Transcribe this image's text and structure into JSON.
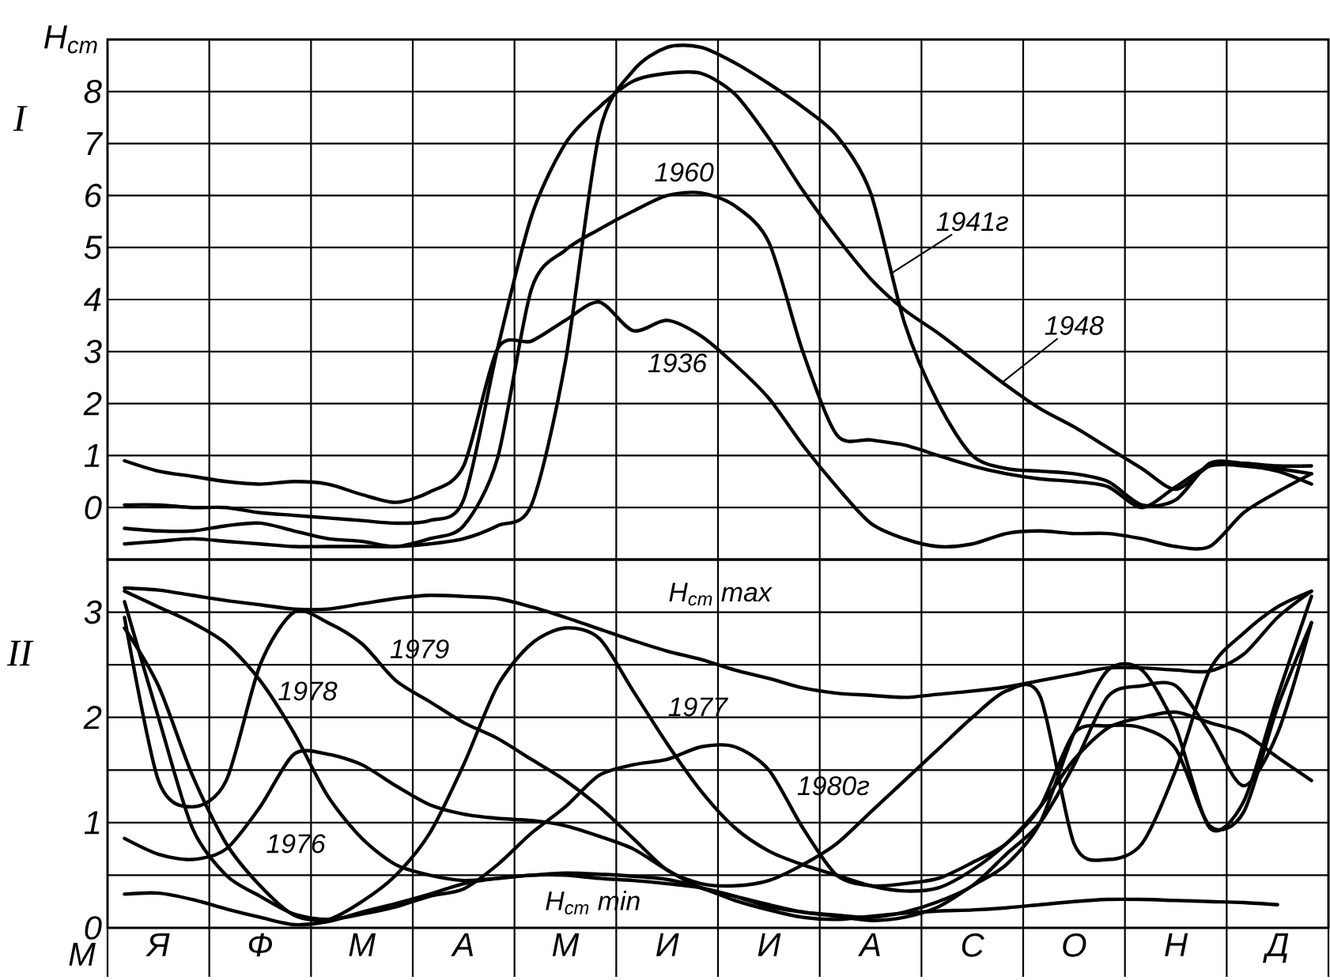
{
  "chart_data": [
    {
      "type": "line",
      "title": "I",
      "ylabel": "H$_{cm}$",
      "ylim": [
        -1,
        9
      ],
      "grid": true,
      "tick_labels": "y",
      "categories": [
        null,
        null,
        null,
        null,
        null,
        null,
        null,
        null,
        null,
        null,
        null,
        null,
        null,
        null,
        null,
        null,
        null,
        null,
        null,
        null,
        null,
        null,
        null,
        null,
        null,
        null,
        null,
        null,
        null,
        null,
        null,
        null,
        null,
        null,
        null,
        null
      ],
      "yticks": [
        0,
        1,
        2,
        3,
        4,
        5,
        6,
        7,
        8
      ],
      "series": [
        {
          "name": "1936",
          "color": "#000000",
          "values": [
            0.9,
            0.7,
            0.6,
            0.5,
            0.45,
            0.5,
            0.45,
            0.25,
            0.1,
            0.3,
            0.8,
            3.05,
            3.2,
            3.6,
            3.95,
            3.4,
            3.6,
            3.3,
            2.75,
            2.1,
            1.2,
            0.4,
            -0.3,
            -0.6,
            -0.75,
            -0.7,
            -0.5,
            -0.45,
            -0.5,
            -0.5,
            -0.6,
            -0.75,
            -0.75,
            -0.1,
            0.3,
            0.65
          ]
        },
        {
          "name": "1960",
          "color": "#000000",
          "values": [
            -0.4,
            -0.45,
            -0.45,
            -0.35,
            -0.3,
            -0.45,
            -0.6,
            -0.65,
            -0.75,
            -0.6,
            -0.35,
            0.95,
            4.2,
            4.95,
            5.35,
            5.7,
            6.0,
            6.05,
            5.8,
            5.1,
            3.0,
            1.4,
            1.3,
            1.2,
            1.0,
            0.8,
            0.65,
            0.55,
            0.5,
            0.4,
            0.0,
            0.4,
            0.8,
            0.8,
            0.7,
            0.45
          ]
        },
        {
          "name": "1948",
          "color": "#000000",
          "values": [
            0.05,
            0.05,
            0.0,
            0.0,
            -0.1,
            -0.15,
            -0.2,
            -0.25,
            -0.3,
            -0.25,
            0.15,
            3.05,
            5.6,
            7.0,
            7.7,
            8.2,
            8.35,
            8.35,
            7.95,
            7.1,
            6.1,
            5.2,
            4.4,
            3.8,
            3.35,
            2.85,
            2.35,
            1.9,
            1.55,
            1.15,
            0.75,
            0.35,
            0.8,
            0.85,
            0.75,
            0.65
          ]
        },
        {
          "name": "1941г",
          "color": "#000000",
          "values": [
            -0.7,
            -0.65,
            -0.6,
            -0.65,
            -0.7,
            -0.75,
            -0.75,
            -0.75,
            -0.75,
            -0.7,
            -0.6,
            -0.35,
            0.05,
            2.8,
            7.2,
            8.4,
            8.85,
            8.85,
            8.55,
            8.15,
            7.7,
            7.15,
            6.05,
            3.55,
            2.0,
            1.0,
            0.75,
            0.7,
            0.65,
            0.5,
            0.05,
            0.15,
            0.85,
            0.85,
            0.8,
            0.8
          ]
        }
      ]
    },
    {
      "type": "line",
      "title": "II",
      "xlabel": "М",
      "ylim": [
        0,
        3.5
      ],
      "grid": true,
      "categories": [
        null,
        "Я",
        null,
        null,
        "Ф",
        null,
        null,
        "М",
        null,
        null,
        "А",
        null,
        null,
        "М",
        null,
        null,
        "И",
        null,
        null,
        "И",
        null,
        null,
        "А",
        null,
        null,
        "С",
        null,
        null,
        "О",
        null,
        null,
        "Н",
        null,
        null,
        "Д",
        null
      ],
      "yticks": [
        0,
        {
          "value": 0.5,
          "label": null
        },
        1,
        {
          "value": 1.5,
          "label": null
        },
        2,
        {
          "value": 2.5,
          "label": null
        },
        3
      ],
      "series": [
        {
          "name": "H$_{cm}$ max",
          "color": "#000000",
          "values": [
            3.23,
            3.21,
            3.16,
            3.11,
            3.07,
            3.03,
            3.03,
            3.08,
            3.13,
            3.16,
            3.15,
            3.13,
            3.05,
            2.95,
            2.84,
            2.73,
            2.63,
            2.55,
            2.45,
            2.37,
            2.28,
            2.23,
            2.21,
            2.19,
            2.22,
            2.25,
            2.29,
            2.35,
            2.41,
            2.47,
            2.47,
            2.45,
            2.44,
            2.6,
            2.95,
            3.2
          ]
        },
        {
          "name": "1979",
          "color": "#000000",
          "values": [
            2.95,
            1.4,
            1.15,
            1.4,
            2.5,
            3.0,
            2.9,
            2.7,
            2.35,
            2.15,
            1.95,
            1.8,
            1.6,
            1.4,
            1.15,
            0.85,
            0.55,
            0.42,
            0.4,
            0.45,
            0.6,
            0.8,
            1.1,
            1.4,
            1.7,
            2.0,
            2.25,
            2.2,
            0.8,
            0.65,
            0.8,
            1.5,
            2.45,
            2.8,
            3.05,
            3.2
          ]
        },
        {
          "name": "1978",
          "color": "#000000",
          "values": [
            3.2,
            3.05,
            2.9,
            2.7,
            2.35,
            1.85,
            1.25,
            0.85,
            0.6,
            0.5,
            0.45,
            0.47,
            0.5,
            0.5,
            0.47,
            0.45,
            0.42,
            0.38,
            0.3,
            0.2,
            0.15,
            0.12,
            0.1,
            0.15,
            0.25,
            0.4,
            0.7,
            1.0,
            1.55,
            2.2,
            2.3,
            2.3,
            1.85,
            1.35,
            1.85,
            2.9
          ]
        },
        {
          "name": "1977",
          "color": "#000000",
          "values": [
            2.85,
            2.3,
            1.45,
            0.8,
            0.4,
            0.12,
            0.08,
            0.25,
            0.5,
            0.9,
            1.55,
            2.3,
            2.7,
            2.85,
            2.75,
            2.25,
            1.75,
            1.3,
            0.95,
            0.73,
            0.6,
            0.5,
            0.4,
            0.35,
            0.38,
            0.55,
            0.8,
            1.15,
            1.6,
            1.9,
            2.0,
            2.05,
            1.95,
            1.85,
            1.62,
            1.4
          ]
        },
        {
          "name": "1980г",
          "color": "#000000",
          "values": [
            3.1,
            2.0,
            0.95,
            0.5,
            0.3,
            0.13,
            0.08,
            0.13,
            0.2,
            0.3,
            0.37,
            0.6,
            0.9,
            1.15,
            1.45,
            1.55,
            1.6,
            1.72,
            1.72,
            1.5,
            0.95,
            0.5,
            0.4,
            0.42,
            0.47,
            0.62,
            0.8,
            1.15,
            1.85,
            1.92,
            1.9,
            1.7,
            0.97,
            1.1,
            2.1,
            2.9
          ]
        },
        {
          "name": "1976",
          "color": "#000000",
          "values": [
            0.85,
            0.7,
            0.65,
            0.75,
            1.15,
            1.65,
            1.65,
            1.55,
            1.35,
            1.17,
            1.08,
            1.04,
            1.02,
            0.97,
            0.87,
            0.75,
            0.55,
            0.38,
            0.3,
            0.22,
            0.15,
            0.11,
            0.07,
            0.1,
            0.2,
            0.4,
            0.6,
            1.0,
            1.85,
            2.45,
            2.45,
            1.9,
            0.95,
            1.2,
            2.2,
            3.15
          ]
        },
        {
          "name": "H$_{cm}$ min",
          "color": "#000000",
          "values": [
            0.32,
            0.33,
            0.27,
            0.18,
            0.1,
            0.03,
            0.06,
            0.15,
            0.23,
            0.32,
            0.42,
            0.47,
            0.5,
            0.52,
            0.51,
            0.49,
            0.46,
            0.38,
            0.26,
            0.17,
            0.1,
            0.08,
            0.11,
            0.14,
            0.16,
            0.17,
            0.19,
            0.22,
            0.25,
            0.27,
            0.27,
            0.26,
            0.25,
            0.24,
            0.22,
            null
          ]
        }
      ]
    }
  ]
}
